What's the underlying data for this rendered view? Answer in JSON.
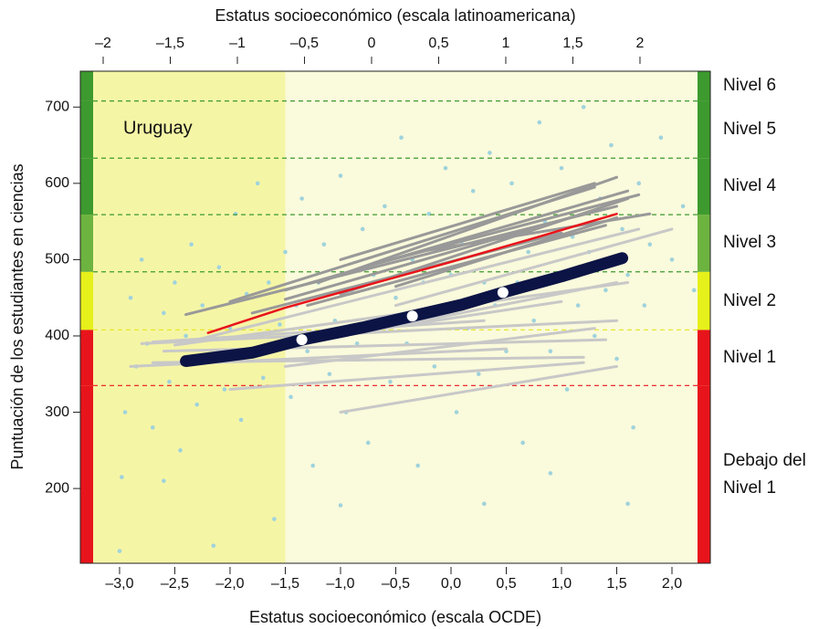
{
  "chart_data": {
    "type": "scatter",
    "x_label": "Estatus socioeconómico (escala OCDE)",
    "x2_label": "Estatus socioeconómico (escala latinoamericana)",
    "y_label": "Puntuación de los estudiantes en ciencias",
    "annotation": "Uruguay",
    "xlim": [
      -3.355,
      2.347
    ],
    "x2lim": [
      -2.17,
      2.524
    ],
    "ylim": [
      102,
      747
    ],
    "xticks": [
      {
        "value": -3,
        "label": "–3,0"
      },
      {
        "value": -2.5,
        "label": "–2,5"
      },
      {
        "value": -2,
        "label": "–2,0"
      },
      {
        "value": -1.5,
        "label": "–1,5"
      },
      {
        "value": -1,
        "label": "–1,0"
      },
      {
        "value": -0.5,
        "label": "–0,5"
      },
      {
        "value": 0,
        "label": "0,0"
      },
      {
        "value": 0.5,
        "label": "0,5"
      },
      {
        "value": 1,
        "label": "1,0"
      },
      {
        "value": 1.5,
        "label": "1,5"
      },
      {
        "value": 2,
        "label": "2,0"
      }
    ],
    "x2ticks": [
      {
        "value": -2,
        "label": "–2"
      },
      {
        "value": -1.5,
        "label": "–1,5"
      },
      {
        "value": -1,
        "label": "–1"
      },
      {
        "value": -0.5,
        "label": "–0,5"
      },
      0,
      {
        "value": 0.5,
        "label": "0,5"
      },
      1,
      {
        "value": 1.5,
        "label": "1,5"
      },
      2
    ],
    "yticks": [
      200,
      300,
      400,
      500,
      600,
      700
    ],
    "shaded_below_x": -1.5,
    "shade_color": "#f5f5a6",
    "background_color": "#fafadc",
    "level_bounds": [
      335,
      408,
      484,
      559,
      633,
      708
    ],
    "bound_colors": [
      "#e8141b",
      "#e6e61a",
      "#3d9a2e",
      "#3d9a2e",
      "#3d9a2e",
      "#3d9a2e"
    ],
    "levels": [
      {
        "label": "Debajo del Nivel 1",
        "color": "#e8141b"
      },
      {
        "label": "Nivel 1",
        "color": "#e8141b"
      },
      {
        "label": "Nivel 2",
        "color": "#e6f01a"
      },
      {
        "label": "Nivel 3",
        "color": "#6db33f"
      },
      {
        "label": "Nivel 4",
        "color": "#3d9a2e"
      },
      {
        "label": "Nivel 5",
        "color": "#3d9a2e"
      },
      {
        "label": "Nivel 6",
        "color": "#3d9a2e"
      }
    ],
    "points": {
      "color": "#9fd3dc",
      "x": [
        -3.0,
        -2.98,
        -2.95,
        -2.9,
        -2.85,
        -2.8,
        -2.75,
        -2.7,
        -2.6,
        -2.55,
        -2.5,
        -2.45,
        -2.4,
        -2.35,
        -2.3,
        -2.25,
        -2.2,
        -2.15,
        -2.1,
        -2.05,
        -2.0,
        -1.95,
        -1.9,
        -1.85,
        -1.8,
        -1.75,
        -1.7,
        -1.65,
        -1.6,
        -1.55,
        -1.5,
        -1.45,
        -1.4,
        -1.35,
        -1.3,
        -1.25,
        -1.2,
        -1.15,
        -1.1,
        -1.05,
        -1.0,
        -0.95,
        -0.9,
        -0.85,
        -0.8,
        -0.75,
        -0.7,
        -0.65,
        -0.6,
        -0.55,
        -0.5,
        -0.45,
        -0.4,
        -0.35,
        -0.3,
        -0.25,
        -0.2,
        -0.15,
        -0.1,
        -0.05,
        0.0,
        0.05,
        0.1,
        0.15,
        0.2,
        0.25,
        0.3,
        0.35,
        0.4,
        0.45,
        0.5,
        0.55,
        0.6,
        0.65,
        0.7,
        0.75,
        0.8,
        0.85,
        0.9,
        0.95,
        1.0,
        1.05,
        1.1,
        1.15,
        1.2,
        1.25,
        1.3,
        1.35,
        1.4,
        1.45,
        1.5,
        1.55,
        1.6,
        1.65,
        1.7,
        1.75,
        1.8,
        1.9,
        2.0,
        2.1,
        2.2,
        -1.0,
        0.3,
        0.9,
        -2.6,
        1.6
      ],
      "y": [
        118,
        215,
        300,
        450,
        360,
        500,
        390,
        280,
        430,
        340,
        470,
        250,
        400,
        520,
        310,
        440,
        370,
        125,
        490,
        330,
        410,
        560,
        290,
        455,
        380,
        600,
        345,
        470,
        160,
        415,
        510,
        320,
        440,
        580,
        380,
        230,
        470,
        520,
        350,
        420,
        610,
        300,
        460,
        390,
        540,
        260,
        480,
        410,
        570,
        340,
        450,
        660,
        390,
        500,
        230,
        470,
        560,
        360,
        430,
        620,
        480,
        300,
        520,
        410,
        590,
        350,
        470,
        640,
        440,
        530,
        380,
        600,
        470,
        260,
        510,
        420,
        680,
        550,
        380,
        480,
        620,
        330,
        530,
        440,
        700,
        510,
        400,
        580,
        460,
        650,
        370,
        540,
        480,
        280,
        600,
        440,
        520,
        660,
        500,
        570,
        460,
        178,
        180,
        220,
        210,
        180
      ]
    },
    "segments": [
      {
        "color": "#c8c8c8",
        "x": [
          -2.8,
          1.5
        ],
        "y": [
          390,
          420
        ]
      },
      {
        "color": "#c8c8c8",
        "x": [
          -2.6,
          1.4
        ],
        "y": [
          380,
          395
        ]
      },
      {
        "color": "#c8c8c8",
        "x": [
          -2.7,
          1.2
        ],
        "y": [
          365,
          372
        ]
      },
      {
        "color": "#c8c8c8",
        "x": [
          -2.5,
          1.6
        ],
        "y": [
          388,
          470
        ]
      },
      {
        "color": "#c8c8c8",
        "x": [
          -2.3,
          1.7
        ],
        "y": [
          395,
          540
        ]
      },
      {
        "color": "#c8c8c8",
        "x": [
          -1.5,
          1.3
        ],
        "y": [
          360,
          410
        ]
      },
      {
        "color": "#c8c8c8",
        "x": [
          -2.0,
          1.2
        ],
        "y": [
          330,
          365
        ]
      },
      {
        "color": "#c8c8c8",
        "x": [
          -1.0,
          1.5
        ],
        "y": [
          300,
          360
        ]
      },
      {
        "color": "#c8c8c8",
        "x": [
          -2.2,
          1.0
        ],
        "y": [
          375,
          445
        ]
      },
      {
        "color": "#c8c8c8",
        "x": [
          -2.9,
          0.5
        ],
        "y": [
          360,
          383
        ]
      },
      {
        "color": "#c8c8c8",
        "x": [
          -1.5,
          1.5
        ],
        "y": [
          385,
          470
        ]
      },
      {
        "color": "#c8c8c8",
        "x": [
          -0.5,
          2.0
        ],
        "y": [
          440,
          540
        ]
      },
      {
        "color": "#c8c8c8",
        "x": [
          -2.7,
          0.3
        ],
        "y": [
          392,
          420
        ]
      },
      {
        "color": "#999999",
        "x": [
          -2.4,
          1.5
        ],
        "y": [
          428,
          570
        ]
      },
      {
        "color": "#999999",
        "x": [
          -2.0,
          1.3
        ],
        "y": [
          445,
          595
        ]
      },
      {
        "color": "#999999",
        "x": [
          -1.2,
          1.5
        ],
        "y": [
          470,
          608
        ]
      },
      {
        "color": "#999999",
        "x": [
          -1.5,
          1.2
        ],
        "y": [
          448,
          560
        ]
      },
      {
        "color": "#999999",
        "x": [
          -1.0,
          1.6
        ],
        "y": [
          455,
          580
        ]
      },
      {
        "color": "#999999",
        "x": [
          -0.8,
          1.7
        ],
        "y": [
          490,
          585
        ]
      },
      {
        "color": "#999999",
        "x": [
          -1.3,
          1.4
        ],
        "y": [
          440,
          545
        ]
      },
      {
        "color": "#999999",
        "x": [
          -0.5,
          1.5
        ],
        "y": [
          465,
          555
        ]
      },
      {
        "color": "#999999",
        "x": [
          -1.8,
          1.0
        ],
        "y": [
          430,
          535
        ]
      },
      {
        "color": "#999999",
        "x": [
          -1.0,
          1.3
        ],
        "y": [
          500,
          600
        ]
      },
      {
        "color": "#999999",
        "x": [
          -0.3,
          1.8
        ],
        "y": [
          510,
          560
        ]
      },
      {
        "color": "#999999",
        "x": [
          -1.5,
          1.6
        ],
        "y": [
          460,
          590
        ]
      }
    ],
    "series": [
      {
        "color": "#e8141b",
        "line_width": 2.5,
        "x": [
          -2.2,
          -1.5,
          -0.8,
          0,
          0.7,
          1.5
        ],
        "y": [
          404,
          437,
          465,
          497,
          526,
          560
        ]
      },
      {
        "color": "#0b1445",
        "line_width": 13,
        "x": [
          -2.4,
          -1.8,
          -1.35,
          -0.8,
          -0.35,
          0.1,
          0.47,
          1.0,
          1.55
        ],
        "y": [
          367,
          378,
          395,
          411,
          426,
          441,
          457,
          478,
          502
        ]
      }
    ],
    "markers": {
      "color": "#ffffff",
      "x": [
        -1.35,
        -0.35,
        0.47
      ],
      "y": [
        395,
        426,
        457
      ]
    }
  }
}
